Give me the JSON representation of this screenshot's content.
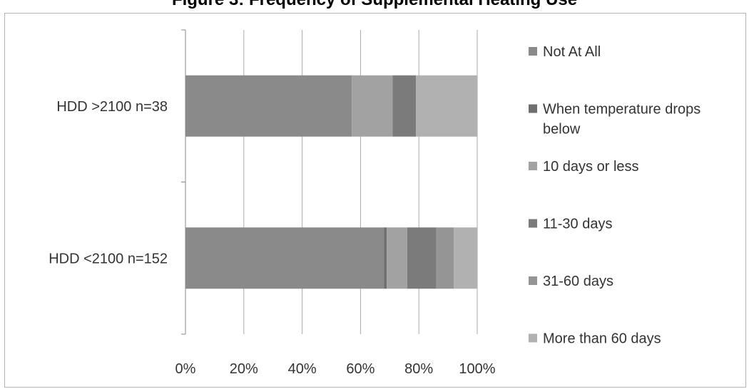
{
  "chart_data": {
    "type": "bar",
    "orientation": "horizontal",
    "stacked": "percent",
    "title": "Figure 3: Frequency of Supplemental Heating Use",
    "categories": [
      "HDD >2100 n=38",
      "HDD <2100 n=152"
    ],
    "series": [
      {
        "name": "Not At All",
        "values": [
          57,
          68
        ],
        "color": "#8a8a8a"
      },
      {
        "name": "When temperature drops below",
        "values": [
          0,
          1
        ],
        "color": "#6f6f6f"
      },
      {
        "name": "10 days or less",
        "values": [
          14,
          7
        ],
        "color": "#a2a2a2"
      },
      {
        "name": "11-30 days",
        "values": [
          8,
          10
        ],
        "color": "#7b7b7b"
      },
      {
        "name": "31-60 days",
        "values": [
          0,
          6
        ],
        "color": "#959595"
      },
      {
        "name": "More than 60 days",
        "values": [
          21,
          8
        ],
        "color": "#b1b1b1"
      }
    ],
    "xticks": [
      "0%",
      "20%",
      "40%",
      "60%",
      "80%",
      "100%"
    ],
    "xlim": [
      0,
      100
    ],
    "grid": "vertical",
    "legend_position": "right"
  }
}
